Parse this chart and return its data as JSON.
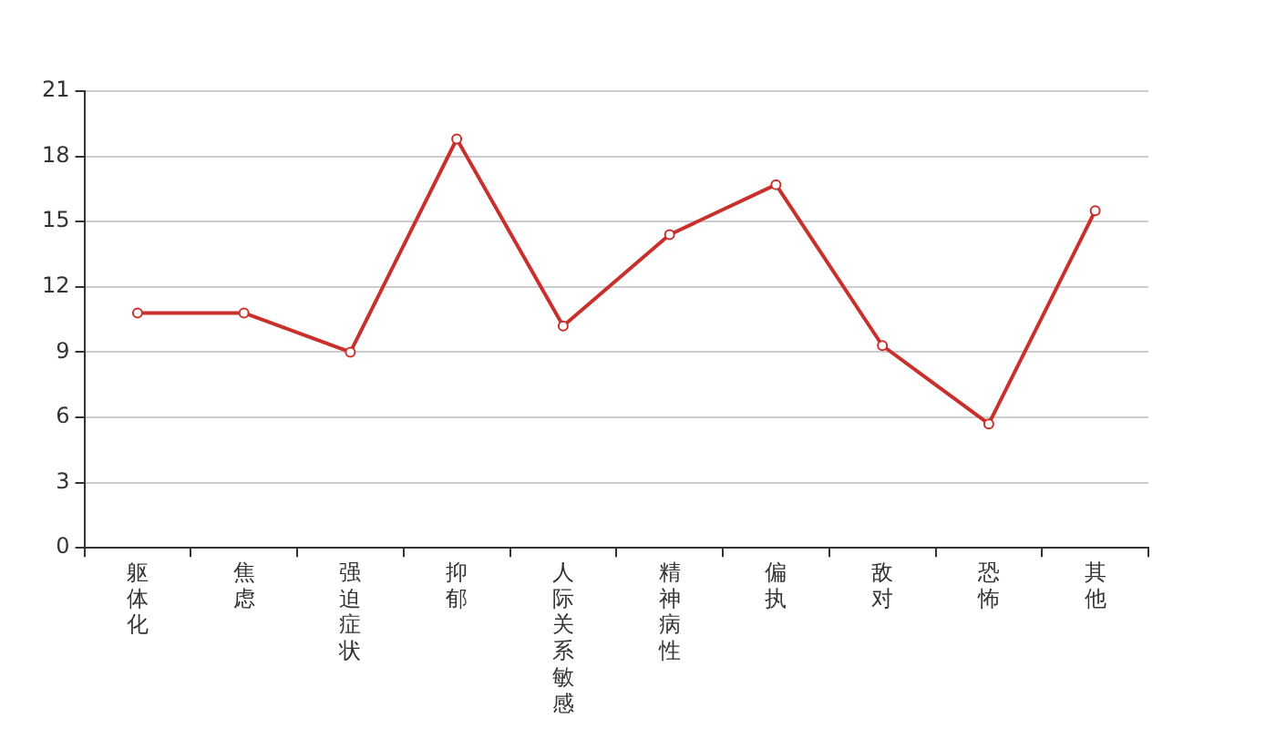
{
  "chart_data": {
    "type": "line",
    "categories": [
      "躯体化",
      "焦虑",
      "强迫症状",
      "抑郁",
      "人际关系敏感",
      "精神病性",
      "偏执",
      "敌对",
      "恐怖",
      "其他"
    ],
    "series": [
      {
        "color": "#c9302c",
        "values": [
          10.8,
          10.8,
          9.0,
          18.8,
          10.2,
          14.4,
          16.7,
          9.3,
          5.7,
          15.5
        ]
      }
    ],
    "ylim": [
      0,
      21
    ],
    "yticks": [
      0,
      3,
      6,
      9,
      12,
      15,
      18,
      21
    ],
    "grid": "y",
    "legend": false,
    "marker": "circle",
    "line_style": "solid"
  }
}
